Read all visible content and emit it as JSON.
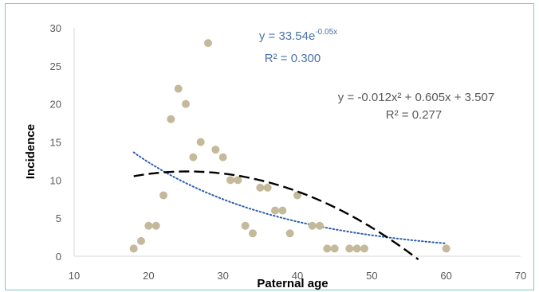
{
  "chart_data": {
    "type": "scatter",
    "title": "",
    "xlabel": "Paternal age",
    "ylabel": "Incidence",
    "xlim": [
      10,
      70
    ],
    "ylim": [
      0,
      30
    ],
    "x_ticks": [
      10,
      20,
      30,
      40,
      50,
      60,
      70
    ],
    "y_ticks": [
      0,
      5,
      10,
      15,
      20,
      25,
      30
    ],
    "grid": false,
    "series": [
      {
        "type": "scatter",
        "color": "#c4b99a",
        "points": [
          [
            18,
            1
          ],
          [
            19,
            2
          ],
          [
            20,
            4
          ],
          [
            21,
            4
          ],
          [
            22,
            8
          ],
          [
            23,
            18
          ],
          [
            24,
            22
          ],
          [
            25,
            20
          ],
          [
            26,
            13
          ],
          [
            27,
            15
          ],
          [
            28,
            28
          ],
          [
            29,
            14
          ],
          [
            30,
            13
          ],
          [
            31,
            10
          ],
          [
            32,
            10
          ],
          [
            33,
            4
          ],
          [
            34,
            3
          ],
          [
            35,
            9
          ],
          [
            36,
            9
          ],
          [
            37,
            6
          ],
          [
            38,
            6
          ],
          [
            39,
            3
          ],
          [
            40,
            8
          ],
          [
            42,
            4
          ],
          [
            43,
            4
          ],
          [
            44,
            1
          ],
          [
            45,
            1
          ],
          [
            47,
            1
          ],
          [
            48,
            1
          ],
          [
            49,
            1
          ],
          [
            60,
            1
          ]
        ]
      },
      {
        "type": "trendline-exponential",
        "color": "#2e5ea8",
        "style": "dotted",
        "a": 33.54,
        "b": -0.05,
        "x_range": [
          18,
          60
        ]
      },
      {
        "type": "trendline-polynomial",
        "color": "#000000",
        "style": "dashed",
        "coefficients": [
          -0.012,
          0.605,
          3.507
        ],
        "x_range": [
          18,
          60
        ]
      }
    ],
    "annotations": {
      "exp_equation": {
        "base": "y = 33.54e",
        "exponent": "-0.05x",
        "r2": "R² = 0.300",
        "color": "#4a73a8"
      },
      "poly_equation": {
        "text": "y = -0.012x² + 0.605x + 3.507",
        "r2": "R² = 0.277",
        "color": "#595959"
      }
    }
  }
}
